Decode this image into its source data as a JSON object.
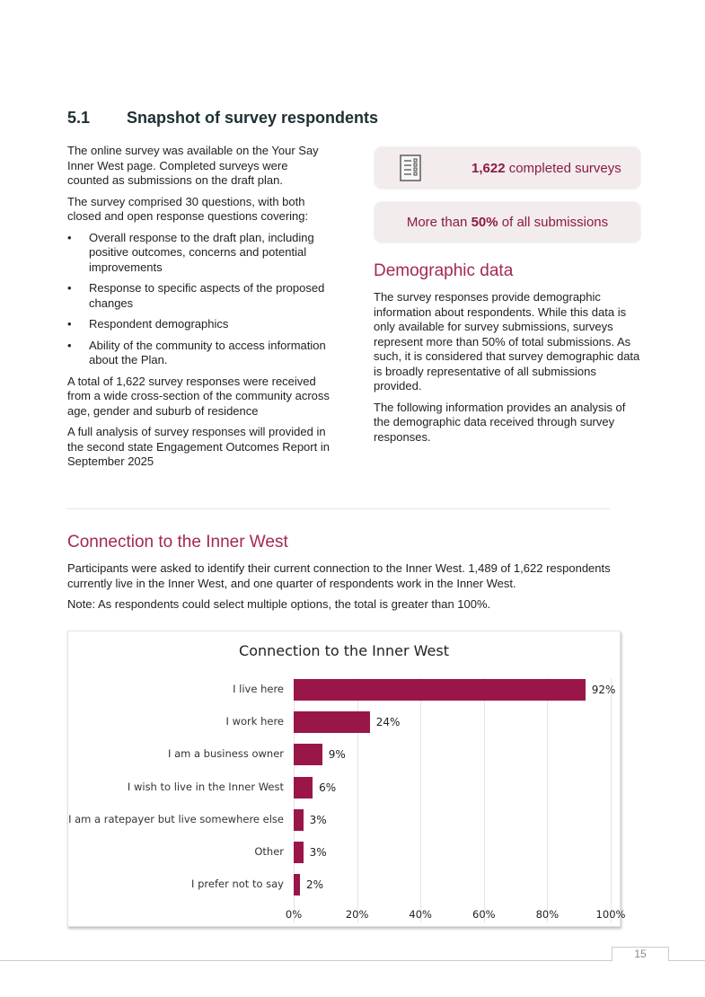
{
  "section": {
    "number": "5.1",
    "title": "Snapshot of survey respondents"
  },
  "left": {
    "p1": "The online survey was available on the Your Say Inner West page. Completed surveys were counted as submissions on the draft plan.",
    "p2": "The survey comprised 30 questions, with both closed and open response questions covering:",
    "bullets": [
      "Overall response to the draft plan, including positive outcomes, concerns and potential improvements",
      "Response to specific aspects of the proposed changes",
      "Respondent demographics",
      "Ability of the community to access information about the Plan."
    ],
    "p3": "A total of 1,622 survey responses were received from a wide cross-section of the community across age, gender and suburb of residence",
    "p4": "A full analysis of survey responses will provided in the second state Engagement Outcomes Report in September 2025"
  },
  "cards": [
    {
      "icon": "survey-checklist-icon",
      "bold": "1,622",
      "text": " completed surveys"
    },
    {
      "pre": "More than ",
      "bold": "50%",
      "text": " of all submissions"
    }
  ],
  "demographic": {
    "title": "Demographic data",
    "p1": "The survey responses provide demographic information about respondents. While this data is only available for survey submissions, surveys represent more than 50% of total submissions. As such, it is considered that survey demographic data is broadly representative of all submissions provided.",
    "p2": "The following information provides an analysis of the demographic data received through survey responses."
  },
  "connection": {
    "title": "Connection to the Inner West",
    "p1": "Participants were asked to identify their current connection to the Inner West. 1,489 of 1,622 respondents currently live in the Inner West, and one quarter of respondents work in the Inner West.",
    "p2": "Note: As respondents could select multiple options, the total is greater than 100%."
  },
  "chart_data": {
    "type": "bar",
    "orientation": "horizontal",
    "title": "Connection to the Inner West",
    "categories": [
      "I live here",
      "I work here",
      "I am a business owner",
      "I wish to live in the Inner West",
      "I am a ratepayer but live somewhere else",
      "Other",
      "I prefer not to say"
    ],
    "values": [
      92,
      24,
      9,
      6,
      3,
      3,
      2
    ],
    "data_labels": [
      "92%",
      "24%",
      "9%",
      "6%",
      "3%",
      "3%",
      "2%"
    ],
    "xlim": [
      0,
      100
    ],
    "xticks": [
      "0%",
      "20%",
      "40%",
      "60%",
      "80%",
      "100%"
    ],
    "grid": true,
    "legend": "none",
    "bar_color": "#9a1648"
  },
  "footer": {
    "page": "15"
  }
}
